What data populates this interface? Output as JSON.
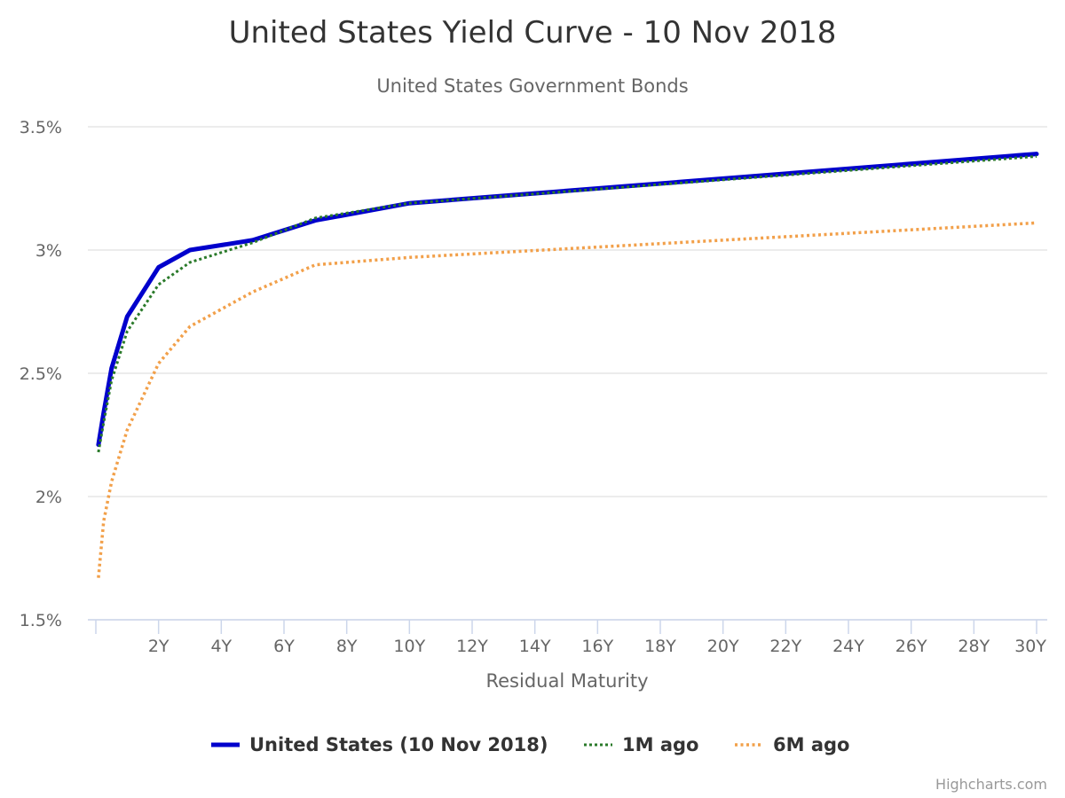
{
  "chart_data": {
    "type": "line",
    "title": "United States Yield Curve - 10 Nov 2018",
    "subtitle": "United States Government Bonds",
    "xlabel": "Residual Maturity",
    "ylabel": "",
    "x_unit": "years",
    "xlim": [
      0,
      30
    ],
    "ylim": [
      1.5,
      3.5
    ],
    "x_ticks": [
      {
        "value": 2,
        "label": "2Y"
      },
      {
        "value": 4,
        "label": "4Y"
      },
      {
        "value": 6,
        "label": "6Y"
      },
      {
        "value": 8,
        "label": "8Y"
      },
      {
        "value": 10,
        "label": "10Y"
      },
      {
        "value": 12,
        "label": "12Y"
      },
      {
        "value": 14,
        "label": "14Y"
      },
      {
        "value": 16,
        "label": "16Y"
      },
      {
        "value": 18,
        "label": "18Y"
      },
      {
        "value": 20,
        "label": "20Y"
      },
      {
        "value": 22,
        "label": "22Y"
      },
      {
        "value": 24,
        "label": "24Y"
      },
      {
        "value": 26,
        "label": "26Y"
      },
      {
        "value": 28,
        "label": "28Y"
      },
      {
        "value": 30,
        "label": "30Y"
      }
    ],
    "y_ticks": [
      {
        "value": 1.5,
        "label": "1.5%"
      },
      {
        "value": 2,
        "label": "2%"
      },
      {
        "value": 2.5,
        "label": "2.5%"
      },
      {
        "value": 3,
        "label": "3%"
      },
      {
        "value": 3.5,
        "label": "3.5%"
      }
    ],
    "grid": "horizontal",
    "legend_position": "bottom-center",
    "series": [
      {
        "name": "United States (10 Nov 2018)",
        "color": "#0000cc",
        "style": "solid",
        "x": [
          0.083,
          0.25,
          0.5,
          1,
          2,
          3,
          5,
          7,
          10,
          30
        ],
        "y": [
          2.21,
          2.34,
          2.52,
          2.73,
          2.93,
          3.0,
          3.04,
          3.12,
          3.19,
          3.39
        ]
      },
      {
        "name": "1M ago",
        "color": "#2a7a2a",
        "style": "dotted",
        "x": [
          0.083,
          0.25,
          0.5,
          1,
          2,
          3,
          5,
          7,
          10,
          30
        ],
        "y": [
          2.18,
          2.3,
          2.47,
          2.67,
          2.86,
          2.95,
          3.03,
          3.13,
          3.19,
          3.38
        ]
      },
      {
        "name": "6M ago",
        "color": "#f2a04a",
        "style": "dotted",
        "x": [
          0.083,
          0.25,
          0.5,
          1,
          2,
          3,
          5,
          7,
          10,
          30
        ],
        "y": [
          1.67,
          1.9,
          2.06,
          2.27,
          2.54,
          2.69,
          2.83,
          2.94,
          2.97,
          3.11
        ]
      }
    ]
  },
  "credits": "Highcharts.com"
}
